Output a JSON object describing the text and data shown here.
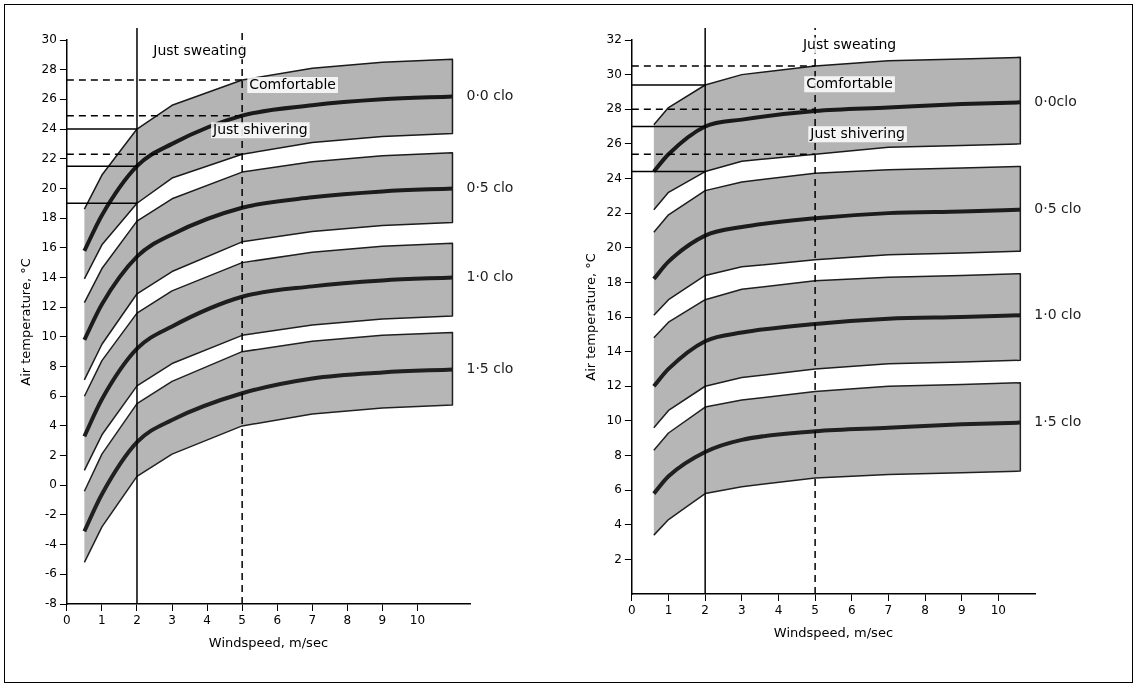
{
  "chart_data": [
    {
      "type": "line",
      "xlabel": "Windspeed, m/sec",
      "ylabel": "Air temperature, °C",
      "xlim": [
        0,
        11.5
      ],
      "xticks": [
        0,
        1,
        2,
        3,
        4,
        5,
        6,
        7,
        8,
        9,
        10
      ],
      "ylim": [
        -8,
        30
      ],
      "yticks": [
        -8,
        -6,
        -4,
        -2,
        0,
        2,
        4,
        6,
        8,
        10,
        12,
        14,
        16,
        18,
        20,
        22,
        24,
        26,
        28,
        30
      ],
      "legend": false,
      "marker": "none",
      "series": [
        {
          "name": "0·0 clo",
          "color": "#1a1a1a",
          "x": [
            0.5,
            1,
            2,
            3,
            5,
            7,
            9,
            11
          ],
          "values": [
            15.8,
            18.2,
            21.5,
            23.0,
            24.9,
            25.6,
            26.0,
            26.2
          ],
          "upper": [
            18.6,
            20.9,
            24.0,
            25.6,
            27.3,
            28.1,
            28.5,
            28.7
          ],
          "lower": [
            13.9,
            16.2,
            19.0,
            20.7,
            22.3,
            23.1,
            23.5,
            23.7
          ]
        },
        {
          "name": "0·5 clo",
          "color": "#1c1c1c",
          "x": [
            0.5,
            1,
            2,
            3,
            5,
            7,
            9,
            11
          ],
          "values": [
            9.8,
            12.2,
            15.4,
            16.9,
            18.7,
            19.4,
            19.8,
            20.0
          ],
          "upper": [
            12.3,
            14.6,
            17.8,
            19.3,
            21.1,
            21.8,
            22.2,
            22.4
          ],
          "lower": [
            7.1,
            9.5,
            12.9,
            14.4,
            16.4,
            17.1,
            17.5,
            17.7
          ]
        },
        {
          "name": "1·0 clo",
          "color": "#1e1e1e",
          "x": [
            0.5,
            1,
            2,
            3,
            5,
            7,
            9,
            11
          ],
          "values": [
            3.3,
            5.8,
            9.2,
            10.7,
            12.7,
            13.4,
            13.8,
            14.0
          ],
          "upper": [
            6.0,
            8.4,
            11.6,
            13.1,
            15.0,
            15.7,
            16.1,
            16.3
          ],
          "lower": [
            1.0,
            3.4,
            6.7,
            8.2,
            10.1,
            10.8,
            11.2,
            11.4
          ]
        },
        {
          "name": "1·5 clo",
          "color": "#202020",
          "x": [
            0.5,
            1,
            2,
            3,
            5,
            7,
            9,
            11
          ],
          "values": [
            -3.1,
            -0.6,
            2.9,
            4.4,
            6.2,
            7.2,
            7.6,
            7.8
          ],
          "upper": [
            -0.4,
            2.1,
            5.5,
            7.0,
            9.0,
            9.7,
            10.1,
            10.3
          ],
          "lower": [
            -5.2,
            -2.8,
            0.6,
            2.1,
            4.0,
            4.8,
            5.2,
            5.4
          ]
        },
        {
          "color": "#000000",
          "line_style": "dashed",
          "x": [
            0,
            5
          ],
          "values": [
            27.3,
            27.3
          ]
        },
        {
          "color": "#000000",
          "line_style": "dashed",
          "x": [
            0,
            5
          ],
          "values": [
            24.9,
            24.9
          ]
        },
        {
          "color": "#000000",
          "line_style": "dashed",
          "x": [
            0,
            5
          ],
          "values": [
            22.3,
            22.3
          ]
        },
        {
          "color": "#000000",
          "line_style": "solid",
          "x": [
            0,
            2
          ],
          "values": [
            24.0,
            24.0
          ]
        },
        {
          "color": "#000000",
          "line_style": "solid",
          "x": [
            0,
            2
          ],
          "values": [
            21.5,
            21.5
          ]
        },
        {
          "color": "#000000",
          "line_style": "solid",
          "x": [
            0,
            2
          ],
          "values": [
            19.0,
            19.0
          ]
        }
      ],
      "ref_lines": [
        {
          "axis": "x",
          "value": 2,
          "line_style": "solid",
          "color": "#000000"
        },
        {
          "axis": "x",
          "value": 5,
          "line_style": "dashed",
          "color": "#000000"
        }
      ],
      "annotations": [
        "Just sweating",
        "Comfortable",
        "Just shivering"
      ]
    },
    {
      "type": "line",
      "xlabel": "Windspeed, m/sec",
      "ylabel": "Air temperature, °C",
      "xlim": [
        0,
        11
      ],
      "xticks": [
        0,
        1,
        2,
        3,
        4,
        5,
        6,
        7,
        8,
        9,
        10
      ],
      "ylim": [
        0,
        32
      ],
      "yticks": [
        2,
        4,
        6,
        8,
        10,
        12,
        14,
        16,
        18,
        20,
        22,
        24,
        26,
        28,
        30,
        32
      ],
      "legend": false,
      "marker": "none",
      "series": [
        {
          "name": "0·0clo",
          "color": "#1a1a1a",
          "x": [
            0.6,
            1,
            2,
            3,
            5,
            7,
            9,
            10.6
          ],
          "values": [
            24.4,
            25.4,
            27.0,
            27.4,
            27.9,
            28.1,
            28.3,
            28.4
          ],
          "upper": [
            27.1,
            28.1,
            29.4,
            30.0,
            30.5,
            30.8,
            30.9,
            31.0
          ],
          "lower": [
            22.2,
            23.2,
            24.4,
            25.0,
            25.4,
            25.8,
            25.9,
            26.0
          ]
        },
        {
          "name": "0·5 clo",
          "color": "#1c1c1c",
          "x": [
            0.6,
            1,
            2,
            3,
            5,
            7,
            9,
            10.6
          ],
          "values": [
            18.2,
            19.2,
            20.7,
            21.2,
            21.7,
            22.0,
            22.1,
            22.2
          ],
          "upper": [
            20.9,
            21.9,
            23.3,
            23.8,
            24.3,
            24.5,
            24.6,
            24.7
          ],
          "lower": [
            16.1,
            17.0,
            18.4,
            18.9,
            19.3,
            19.6,
            19.7,
            19.8
          ]
        },
        {
          "name": "1·0 clo",
          "color": "#1e1e1e",
          "x": [
            0.6,
            1,
            2,
            3,
            5,
            7,
            9,
            10.6
          ],
          "values": [
            12.0,
            13.0,
            14.6,
            15.1,
            15.6,
            15.9,
            16.0,
            16.1
          ],
          "upper": [
            14.8,
            15.7,
            17.0,
            17.6,
            18.1,
            18.3,
            18.4,
            18.5
          ],
          "lower": [
            9.6,
            10.6,
            12.0,
            12.5,
            13.0,
            13.3,
            13.4,
            13.5
          ]
        },
        {
          "name": "1·5 clo",
          "color": "#202020",
          "x": [
            0.6,
            1,
            2,
            3,
            5,
            7,
            9,
            10.6
          ],
          "values": [
            5.8,
            6.8,
            8.2,
            8.9,
            9.4,
            9.6,
            9.8,
            9.9
          ],
          "upper": [
            8.3,
            9.3,
            10.8,
            11.2,
            11.7,
            12.0,
            12.1,
            12.2
          ],
          "lower": [
            3.4,
            4.3,
            5.8,
            6.2,
            6.7,
            6.9,
            7.0,
            7.1
          ]
        },
        {
          "color": "#000000",
          "line_style": "dashed",
          "x": [
            0,
            5
          ],
          "values": [
            30.5,
            30.5
          ]
        },
        {
          "color": "#000000",
          "line_style": "dashed",
          "x": [
            0,
            5
          ],
          "values": [
            28.0,
            28.0
          ]
        },
        {
          "color": "#000000",
          "line_style": "dashed",
          "x": [
            0,
            5
          ],
          "values": [
            25.4,
            25.4
          ]
        },
        {
          "color": "#000000",
          "line_style": "solid",
          "x": [
            0,
            2
          ],
          "values": [
            29.4,
            29.4
          ]
        },
        {
          "color": "#000000",
          "line_style": "solid",
          "x": [
            0,
            2
          ],
          "values": [
            27.0,
            27.0
          ]
        },
        {
          "color": "#000000",
          "line_style": "solid",
          "x": [
            0,
            2
          ],
          "values": [
            24.4,
            24.4
          ]
        }
      ],
      "ref_lines": [
        {
          "axis": "x",
          "value": 2,
          "line_style": "solid",
          "color": "#000000"
        },
        {
          "axis": "x",
          "value": 5,
          "line_style": "dashed",
          "color": "#000000"
        }
      ],
      "annotations": [
        "Just sweating",
        "Comfortable",
        "Just shivering"
      ]
    }
  ]
}
